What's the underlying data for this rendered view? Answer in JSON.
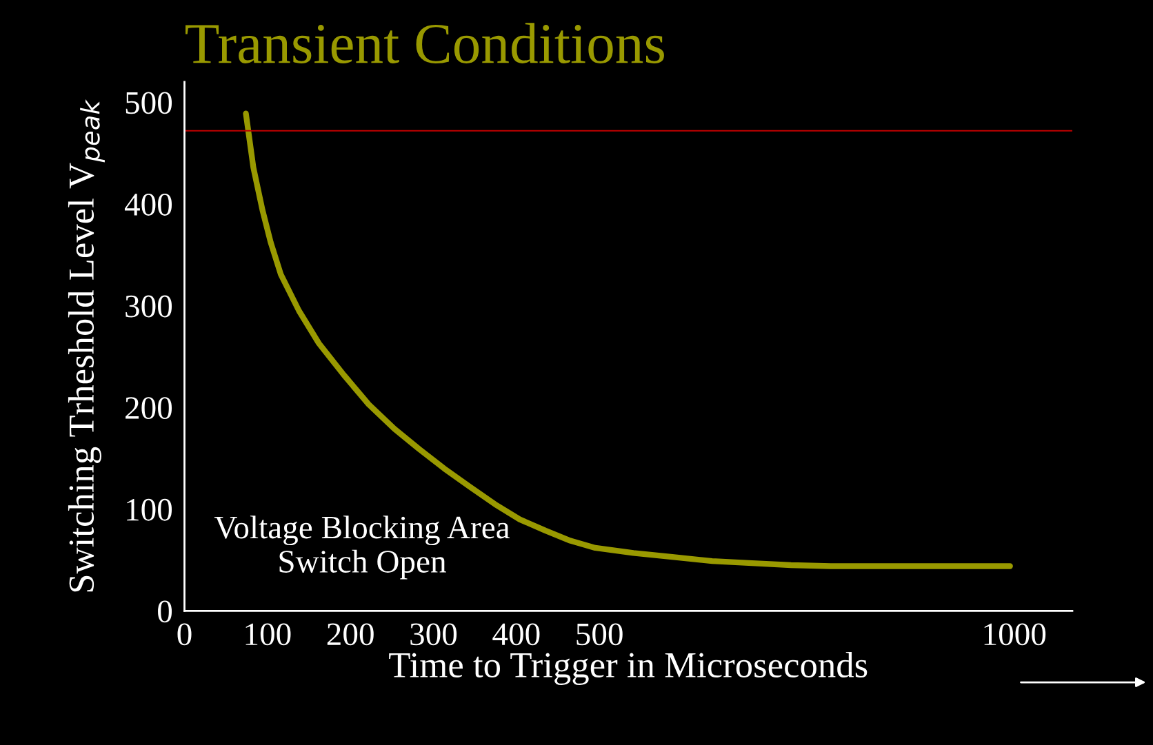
{
  "chart_data": {
    "type": "line",
    "title": "Transient Conditions",
    "xlabel": "Time to Trigger in Microseconds",
    "ylabel": "Switching Trheshold Level V$_{peak}$",
    "x": [
      74,
      83,
      94,
      104,
      116,
      138,
      162,
      192,
      222,
      253,
      283,
      313,
      344,
      374,
      404,
      435,
      465,
      495,
      541,
      588,
      636,
      684,
      731,
      779,
      826,
      874,
      921,
      995
    ],
    "series": [
      {
        "color": "#999900",
        "values": [
          489,
          436,
          394,
          362,
          331,
          295,
          263,
          232,
          203,
          179,
          159,
          140,
          122,
          105,
          90,
          79,
          69,
          62,
          57,
          53,
          49,
          47,
          45,
          44,
          44,
          44,
          44,
          44
        ]
      }
    ],
    "xlim": [
      0,
      1070
    ],
    "xticks": [
      0,
      100,
      200,
      300,
      400,
      500,
      1000
    ],
    "ylim": [
      0,
      520
    ],
    "yticks": [
      0,
      100,
      200,
      300,
      400,
      500
    ],
    "ref_lines": [
      {
        "axis": "y",
        "value": 472,
        "color": "#c00000"
      }
    ],
    "annotations": [
      "Voltage Blocking Area\nSwitch Open"
    ],
    "grid": false,
    "legend": false,
    "marker": "none",
    "line_style": "solid"
  }
}
